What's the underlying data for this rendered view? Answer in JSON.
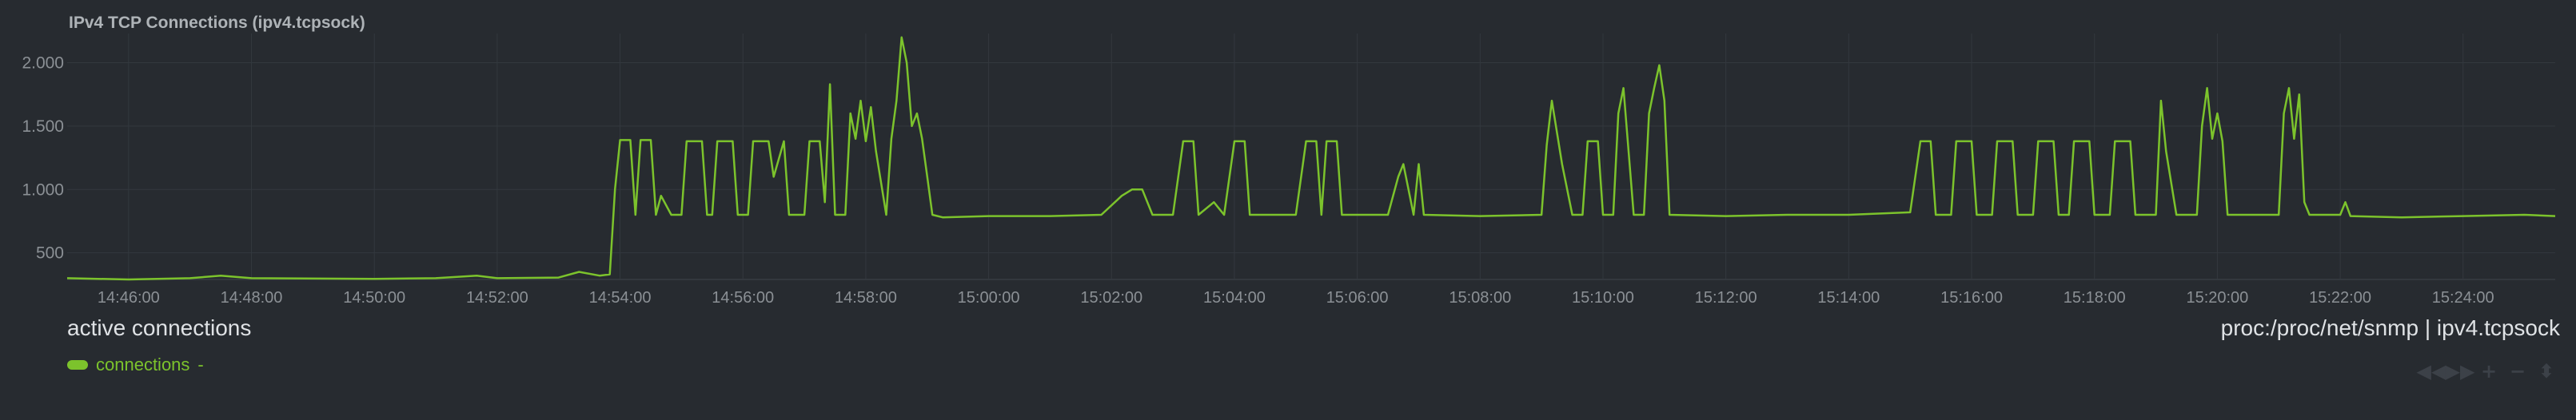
{
  "chart_title": "IPv4 TCP Connections (ipv4.tcpsock)",
  "context_label": "active connections",
  "source_prefix": "proc:/proc/net/snmp",
  "source_separator": "|",
  "source_chart_id": "ipv4.tcpsock",
  "legend": {
    "series_name": "connections",
    "value": "-"
  },
  "colors": {
    "background": "#272b30",
    "series": "#7cc32c",
    "grid": "#33383e",
    "tick_text": "#8b9095",
    "toolbox_icon": "#3c4148"
  },
  "toolbox": [
    {
      "name": "pan-left-icon",
      "glyph": "◀◀"
    },
    {
      "name": "pan-right-icon",
      "glyph": "▶▶"
    },
    {
      "name": "zoom-in-icon",
      "glyph": "+"
    },
    {
      "name": "zoom-out-icon",
      "glyph": "−"
    },
    {
      "name": "resize-icon",
      "glyph": "⬍"
    }
  ],
  "chart_data": {
    "type": "line",
    "title": "IPv4 TCP Connections (ipv4.tcpsock)",
    "ylabel": "",
    "xlabel": "",
    "ylim": [
      290,
      2230
    ],
    "y_ticks": [
      500,
      1000,
      1500,
      2000
    ],
    "y_tick_labels": [
      "500",
      "1.000",
      "1.500",
      "2.000"
    ],
    "x_range_minutes": [
      "14:45:00",
      "15:25:30"
    ],
    "x_ticks": [
      "14:46:00",
      "14:48:00",
      "14:50:00",
      "14:52:00",
      "14:54:00",
      "14:56:00",
      "14:58:00",
      "15:00:00",
      "15:02:00",
      "15:04:00",
      "15:06:00",
      "15:08:00",
      "15:10:00",
      "15:12:00",
      "15:14:00",
      "15:16:00",
      "15:18:00",
      "15:20:00",
      "15:22:00",
      "15:24:00"
    ],
    "grid": true,
    "legend_position": "bottom-left",
    "series": [
      {
        "name": "connections",
        "points": [
          [
            "14:45:00",
            300
          ],
          [
            "14:46:00",
            290
          ],
          [
            "14:47:00",
            300
          ],
          [
            "14:47:30",
            320
          ],
          [
            "14:48:00",
            300
          ],
          [
            "14:50:00",
            295
          ],
          [
            "14:51:00",
            300
          ],
          [
            "14:51:40",
            320
          ],
          [
            "14:52:00",
            300
          ],
          [
            "14:53:00",
            305
          ],
          [
            "14:53:20",
            350
          ],
          [
            "14:53:40",
            320
          ],
          [
            "14:53:50",
            330
          ],
          [
            "14:53:55",
            1000
          ],
          [
            "14:54:00",
            1390
          ],
          [
            "14:54:10",
            1390
          ],
          [
            "14:54:15",
            800
          ],
          [
            "14:54:20",
            1390
          ],
          [
            "14:54:30",
            1390
          ],
          [
            "14:54:35",
            800
          ],
          [
            "14:54:40",
            950
          ],
          [
            "14:54:50",
            800
          ],
          [
            "14:55:00",
            800
          ],
          [
            "14:55:05",
            1380
          ],
          [
            "14:55:20",
            1380
          ],
          [
            "14:55:25",
            800
          ],
          [
            "14:55:30",
            800
          ],
          [
            "14:55:35",
            1380
          ],
          [
            "14:55:50",
            1380
          ],
          [
            "14:55:55",
            800
          ],
          [
            "14:56:05",
            800
          ],
          [
            "14:56:10",
            1380
          ],
          [
            "14:56:25",
            1380
          ],
          [
            "14:56:30",
            1100
          ],
          [
            "14:56:40",
            1380
          ],
          [
            "14:56:45",
            800
          ],
          [
            "14:57:00",
            800
          ],
          [
            "14:57:05",
            1380
          ],
          [
            "14:57:15",
            1380
          ],
          [
            "14:57:20",
            900
          ],
          [
            "14:57:25",
            1830
          ],
          [
            "14:57:30",
            800
          ],
          [
            "14:57:40",
            800
          ],
          [
            "14:57:45",
            1600
          ],
          [
            "14:57:50",
            1400
          ],
          [
            "14:57:55",
            1700
          ],
          [
            "14:58:00",
            1380
          ],
          [
            "14:58:05",
            1650
          ],
          [
            "14:58:10",
            1300
          ],
          [
            "14:58:20",
            800
          ],
          [
            "14:58:25",
            1400
          ],
          [
            "14:58:30",
            1700
          ],
          [
            "14:58:35",
            2200
          ],
          [
            "14:58:40",
            2000
          ],
          [
            "14:58:45",
            1500
          ],
          [
            "14:58:50",
            1600
          ],
          [
            "14:58:55",
            1400
          ],
          [
            "14:59:00",
            1100
          ],
          [
            "14:59:05",
            800
          ],
          [
            "14:59:15",
            780
          ],
          [
            "15:00:00",
            790
          ],
          [
            "15:01:00",
            790
          ],
          [
            "15:01:50",
            800
          ],
          [
            "15:02:10",
            950
          ],
          [
            "15:02:20",
            1000
          ],
          [
            "15:02:30",
            1000
          ],
          [
            "15:02:40",
            800
          ],
          [
            "15:02:50",
            800
          ],
          [
            "15:03:00",
            800
          ],
          [
            "15:03:10",
            1380
          ],
          [
            "15:03:20",
            1380
          ],
          [
            "15:03:25",
            800
          ],
          [
            "15:03:40",
            900
          ],
          [
            "15:03:50",
            800
          ],
          [
            "15:04:00",
            1380
          ],
          [
            "15:04:10",
            1380
          ],
          [
            "15:04:15",
            800
          ],
          [
            "15:05:00",
            800
          ],
          [
            "15:05:10",
            1380
          ],
          [
            "15:05:20",
            1380
          ],
          [
            "15:05:25",
            800
          ],
          [
            "15:05:30",
            1380
          ],
          [
            "15:05:40",
            1380
          ],
          [
            "15:05:45",
            800
          ],
          [
            "15:06:30",
            800
          ],
          [
            "15:06:40",
            1100
          ],
          [
            "15:06:45",
            1200
          ],
          [
            "15:06:55",
            800
          ],
          [
            "15:07:00",
            1200
          ],
          [
            "15:07:05",
            800
          ],
          [
            "15:08:00",
            790
          ],
          [
            "15:09:00",
            800
          ],
          [
            "15:09:05",
            1350
          ],
          [
            "15:09:10",
            1700
          ],
          [
            "15:09:20",
            1200
          ],
          [
            "15:09:30",
            800
          ],
          [
            "15:09:40",
            800
          ],
          [
            "15:09:45",
            1380
          ],
          [
            "15:09:55",
            1380
          ],
          [
            "15:10:00",
            800
          ],
          [
            "15:10:10",
            800
          ],
          [
            "15:10:15",
            1600
          ],
          [
            "15:10:20",
            1800
          ],
          [
            "15:10:25",
            1300
          ],
          [
            "15:10:30",
            800
          ],
          [
            "15:10:40",
            800
          ],
          [
            "15:10:45",
            1600
          ],
          [
            "15:10:50",
            1800
          ],
          [
            "15:10:55",
            1980
          ],
          [
            "15:11:00",
            1700
          ],
          [
            "15:11:05",
            800
          ],
          [
            "15:12:00",
            790
          ],
          [
            "15:13:00",
            800
          ],
          [
            "15:14:00",
            800
          ],
          [
            "15:15:00",
            820
          ],
          [
            "15:15:10",
            1380
          ],
          [
            "15:15:20",
            1380
          ],
          [
            "15:15:25",
            800
          ],
          [
            "15:15:40",
            800
          ],
          [
            "15:15:45",
            1380
          ],
          [
            "15:16:00",
            1380
          ],
          [
            "15:16:05",
            800
          ],
          [
            "15:16:20",
            800
          ],
          [
            "15:16:25",
            1380
          ],
          [
            "15:16:40",
            1380
          ],
          [
            "15:16:45",
            800
          ],
          [
            "15:17:00",
            800
          ],
          [
            "15:17:05",
            1380
          ],
          [
            "15:17:20",
            1380
          ],
          [
            "15:17:25",
            800
          ],
          [
            "15:17:35",
            800
          ],
          [
            "15:17:40",
            1380
          ],
          [
            "15:17:55",
            1380
          ],
          [
            "15:18:00",
            800
          ],
          [
            "15:18:15",
            800
          ],
          [
            "15:18:20",
            1380
          ],
          [
            "15:18:35",
            1380
          ],
          [
            "15:18:40",
            800
          ],
          [
            "15:19:00",
            800
          ],
          [
            "15:19:05",
            1700
          ],
          [
            "15:19:10",
            1300
          ],
          [
            "15:19:20",
            800
          ],
          [
            "15:19:40",
            800
          ],
          [
            "15:19:45",
            1500
          ],
          [
            "15:19:50",
            1800
          ],
          [
            "15:19:55",
            1400
          ],
          [
            "15:20:00",
            1600
          ],
          [
            "15:20:05",
            1380
          ],
          [
            "15:20:10",
            800
          ],
          [
            "15:21:00",
            800
          ],
          [
            "15:21:05",
            1600
          ],
          [
            "15:21:10",
            1800
          ],
          [
            "15:21:15",
            1400
          ],
          [
            "15:21:20",
            1750
          ],
          [
            "15:21:25",
            900
          ],
          [
            "15:21:30",
            800
          ],
          [
            "15:22:00",
            800
          ],
          [
            "15:22:05",
            900
          ],
          [
            "15:22:10",
            790
          ],
          [
            "15:23:00",
            780
          ],
          [
            "15:24:00",
            790
          ],
          [
            "15:25:00",
            800
          ],
          [
            "15:25:30",
            790
          ]
        ]
      }
    ]
  }
}
